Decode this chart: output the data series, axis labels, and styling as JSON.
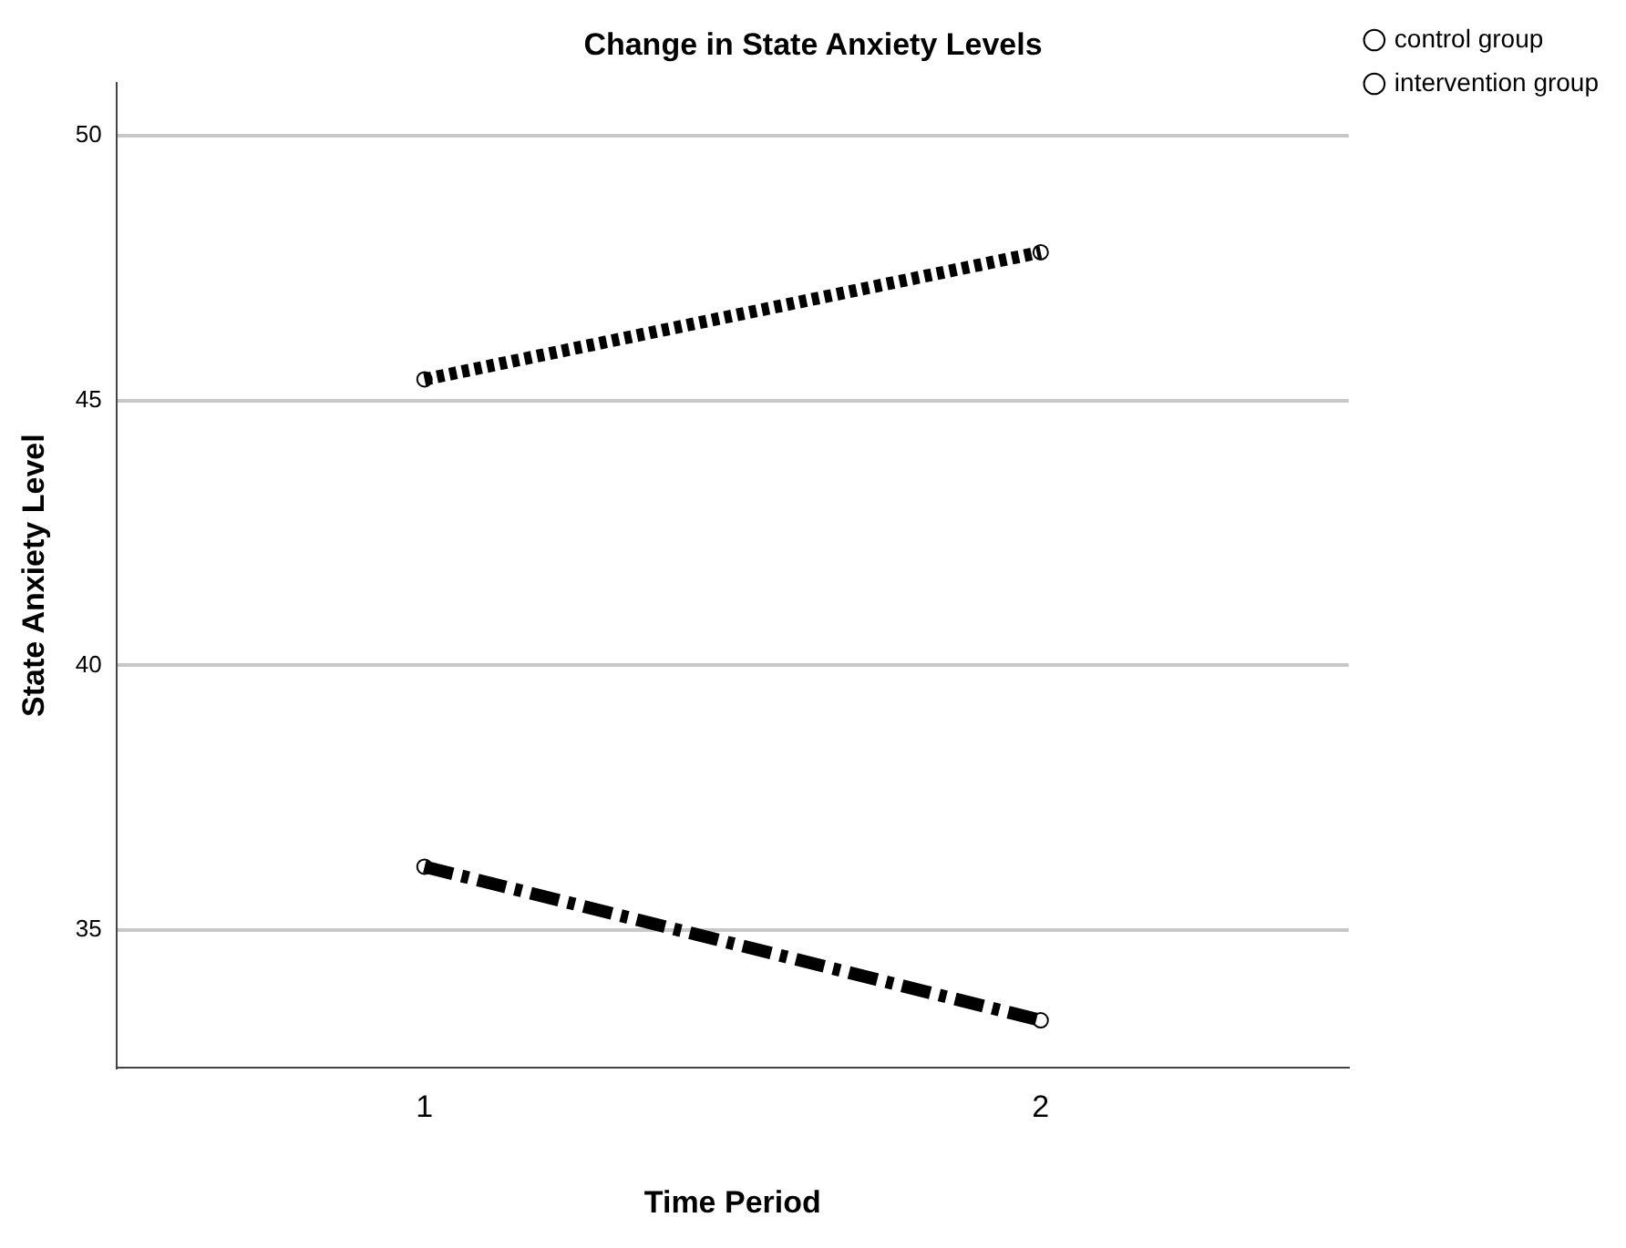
{
  "chart_data": {
    "type": "line",
    "title": "Change in State Anxiety Levels",
    "xlabel": "Time Period",
    "ylabel": "State Anxiety Level",
    "categories": [
      "1",
      "2"
    ],
    "series": [
      {
        "name": "control group",
        "color": "#000000",
        "values": [
          45.4,
          47.8
        ],
        "line_style": "dotted"
      },
      {
        "name": "intervention group",
        "color": "#000000",
        "values": [
          36.2,
          33.3
        ],
        "line_style": "dashed"
      }
    ],
    "ylim": [
      32.4,
      51
    ],
    "yticks": [
      35,
      40,
      45,
      50
    ],
    "grid": "y",
    "legend": "top right",
    "marker": "circle"
  }
}
